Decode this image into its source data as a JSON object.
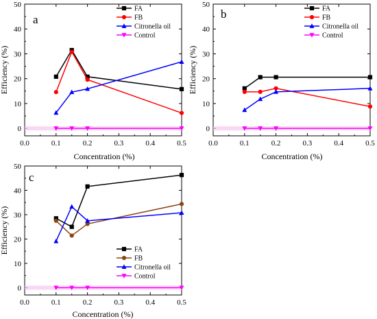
{
  "chart_data": [
    {
      "type": "line",
      "panel_label": "a",
      "xlabel": "Concentration (%)",
      "ylabel": "Efficiency (%)",
      "xlim": [
        0.0,
        0.5
      ],
      "ylim": [
        -3,
        50
      ],
      "xticks": [
        "0.0",
        "0.1",
        "0.2",
        "0.3",
        "0.4",
        "0.5"
      ],
      "yticks": [
        "0",
        "10",
        "20",
        "30",
        "40",
        "50"
      ],
      "legend_position": "top-right",
      "grid": false,
      "x": [
        0.1,
        0.15,
        0.2,
        0.5
      ],
      "series": [
        {
          "name": "FA",
          "color": "#000000",
          "marker": "square",
          "values": [
            20.8,
            31.5,
            20.8,
            15.8
          ]
        },
        {
          "name": "FB",
          "color": "#ff0000",
          "marker": "circle",
          "values": [
            14.6,
            30.8,
            19.6,
            6.2
          ]
        },
        {
          "name": "Citronella oil",
          "color": "#0000ff",
          "marker": "triangle-up",
          "values": [
            6.3,
            14.6,
            15.9,
            26.8
          ]
        },
        {
          "name": "Control",
          "color": "#ff00ff",
          "marker": "triangle-down",
          "values": [
            0,
            0,
            0,
            0
          ]
        }
      ]
    },
    {
      "type": "line",
      "panel_label": "b",
      "xlabel": "Concentration (%)",
      "ylabel": "Efficiency (%)",
      "xlim": [
        0.0,
        0.5
      ],
      "ylim": [
        -3,
        50
      ],
      "xticks": [
        "0.0",
        "0.1",
        "0.2",
        "0.3",
        "0.4",
        "0.5"
      ],
      "yticks": [
        "0",
        "10",
        "20",
        "30",
        "40",
        "50"
      ],
      "legend_position": "top-right",
      "grid": false,
      "x": [
        0.1,
        0.15,
        0.2,
        0.5
      ],
      "series": [
        {
          "name": "FA",
          "color": "#000000",
          "marker": "square",
          "values": [
            16.1,
            20.6,
            20.6,
            20.6
          ]
        },
        {
          "name": "FB",
          "color": "#ff0000",
          "marker": "circle",
          "values": [
            14.7,
            14.7,
            16.1,
            8.8
          ]
        },
        {
          "name": "Citronella oil",
          "color": "#0000ff",
          "marker": "triangle-up",
          "values": [
            7.4,
            11.8,
            14.7,
            16.1
          ]
        },
        {
          "name": "Control",
          "color": "#ff00ff",
          "marker": "triangle-down",
          "values": [
            0,
            0,
            0,
            0
          ]
        }
      ]
    },
    {
      "type": "line",
      "panel_label": "c",
      "xlabel": "Concentration (%)",
      "ylabel": "Efficiency (%)",
      "xlim": [
        0.0,
        0.5
      ],
      "ylim": [
        -3,
        50
      ],
      "xticks": [
        "0.0",
        "0.1",
        "0.2",
        "0.3",
        "0.4",
        "0.5"
      ],
      "yticks": [
        "0",
        "10",
        "20",
        "30",
        "40",
        "50"
      ],
      "legend_position": "bottom-left",
      "grid": false,
      "x": [
        0.1,
        0.15,
        0.2,
        0.5
      ],
      "series": [
        {
          "name": "FA",
          "color": "#000000",
          "marker": "square",
          "values": [
            28.5,
            25.0,
            41.6,
            46.3
          ]
        },
        {
          "name": "FB",
          "color": "#8b4513",
          "marker": "circle",
          "values": [
            27.5,
            21.4,
            26.2,
            34.4
          ]
        },
        {
          "name": "Citronella oil",
          "color": "#0000ff",
          "marker": "triangle-up",
          "values": [
            19.1,
            33.3,
            27.5,
            30.8
          ]
        },
        {
          "name": "Control",
          "color": "#ff00ff",
          "marker": "triangle-down",
          "values": [
            0,
            0,
            0,
            0
          ]
        }
      ]
    }
  ]
}
